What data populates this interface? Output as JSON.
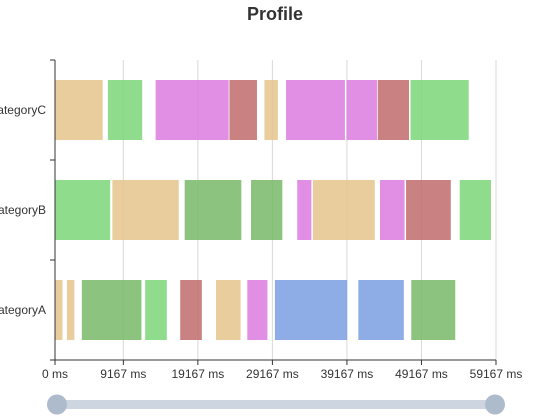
{
  "chart_data": {
    "type": "bar",
    "subtype": "profile-timeline",
    "title": "Profile",
    "unit": "ms",
    "categories": [
      "categoryA",
      "categoryB",
      "categoryC"
    ],
    "category_labels_visible": [
      "ategoryA",
      "ategoryB",
      "ategoryC"
    ],
    "x_ticks": [
      "0 ms",
      "9167 ms",
      "19167 ms",
      "29167 ms",
      "39167 ms",
      "49167 ms",
      "59167 ms"
    ],
    "xlim": [
      0,
      59167
    ],
    "grid": true,
    "slider_range": [
      0,
      100
    ],
    "colors": {
      "orange": "#e5c48b",
      "green": "#7bd678",
      "dkgreen": "#78b869",
      "pink": "#db7be0",
      "red": "#c06b6c",
      "blue": "#7a9ee0",
      "axis": "#333333",
      "grid": "#d9d9d9",
      "slider_track": "#cdd5e0",
      "slider_handle": "#aebbcc"
    },
    "segments": [
      {
        "category": "categoryA",
        "start": 0,
        "end": 1000,
        "color": "orange"
      },
      {
        "category": "categoryA",
        "start": 1600,
        "end": 2600,
        "color": "orange"
      },
      {
        "category": "categoryA",
        "start": 3600,
        "end": 11600,
        "color": "dkgreen"
      },
      {
        "category": "categoryA",
        "start": 12100,
        "end": 15000,
        "color": "green"
      },
      {
        "category": "categoryA",
        "start": 16800,
        "end": 19700,
        "color": "red"
      },
      {
        "category": "categoryA",
        "start": 21600,
        "end": 24900,
        "color": "orange"
      },
      {
        "category": "categoryA",
        "start": 25800,
        "end": 28500,
        "color": "pink"
      },
      {
        "category": "categoryA",
        "start": 29500,
        "end": 39200,
        "color": "blue"
      },
      {
        "category": "categoryA",
        "start": 40700,
        "end": 46800,
        "color": "blue"
      },
      {
        "category": "categoryA",
        "start": 47800,
        "end": 53700,
        "color": "dkgreen"
      },
      {
        "category": "categoryB",
        "start": 0,
        "end": 7400,
        "color": "green"
      },
      {
        "category": "categoryB",
        "start": 7700,
        "end": 16600,
        "color": "orange"
      },
      {
        "category": "categoryB",
        "start": 17400,
        "end": 25000,
        "color": "dkgreen"
      },
      {
        "category": "categoryB",
        "start": 26300,
        "end": 30500,
        "color": "dkgreen"
      },
      {
        "category": "categoryB",
        "start": 32500,
        "end": 34400,
        "color": "pink"
      },
      {
        "category": "categoryB",
        "start": 34600,
        "end": 42900,
        "color": "orange"
      },
      {
        "category": "categoryB",
        "start": 43600,
        "end": 46900,
        "color": "pink"
      },
      {
        "category": "categoryB",
        "start": 47100,
        "end": 53100,
        "color": "red"
      },
      {
        "category": "categoryB",
        "start": 54300,
        "end": 58500,
        "color": "green"
      },
      {
        "category": "categoryC",
        "start": 0,
        "end": 6400,
        "color": "orange"
      },
      {
        "category": "categoryC",
        "start": 7100,
        "end": 11700,
        "color": "green"
      },
      {
        "category": "categoryC",
        "start": 13500,
        "end": 23300,
        "color": "pink"
      },
      {
        "category": "categoryC",
        "start": 23400,
        "end": 27100,
        "color": "red"
      },
      {
        "category": "categoryC",
        "start": 28100,
        "end": 29900,
        "color": "orange"
      },
      {
        "category": "categoryC",
        "start": 31000,
        "end": 38900,
        "color": "pink"
      },
      {
        "category": "categoryC",
        "start": 39100,
        "end": 43200,
        "color": "pink"
      },
      {
        "category": "categoryC",
        "start": 43300,
        "end": 47500,
        "color": "red"
      },
      {
        "category": "categoryC",
        "start": 47700,
        "end": 55500,
        "color": "green"
      }
    ]
  }
}
